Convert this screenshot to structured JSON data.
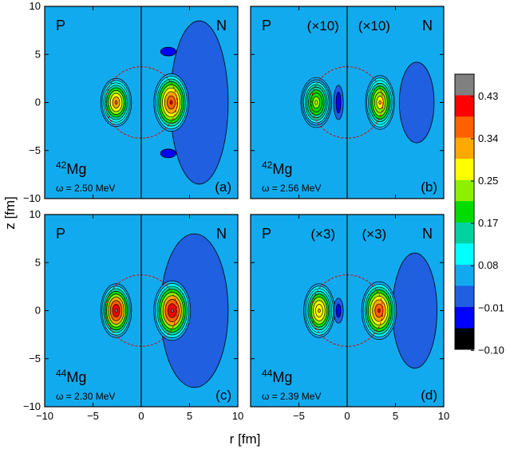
{
  "chart_data": {
    "type": "heatmap",
    "xlabel": "r [fm]",
    "ylabel": "z [fm]",
    "xlim": [
      -10,
      10
    ],
    "ylim": [
      -10,
      10
    ],
    "x_ticks": [
      "−10",
      "−5",
      "0",
      "5",
      "10"
    ],
    "y_ticks": [
      "10",
      "5",
      "0",
      "−5",
      "−10"
    ],
    "colorbar": {
      "levels": [
        -0.1,
        -0.01,
        0.08,
        0.17,
        0.25,
        0.34,
        0.43
      ],
      "labels": [
        "0.43",
        "0.34",
        "0.25",
        "0.17",
        "0.08",
        "−0.01",
        "−0.10"
      ],
      "colors": [
        "#000000",
        "#0000ff",
        "#1f5fe0",
        "#12aaee",
        "#00ffff",
        "#00d2a0",
        "#00dc00",
        "#8cf000",
        "#ffff00",
        "#ffa800",
        "#ff6000",
        "#ff0000",
        "#808080"
      ]
    },
    "panels": [
      {
        "id": "a",
        "left_label": "P",
        "right_label": "N",
        "left_scale": "",
        "right_scale": "",
        "mass_number": "42",
        "element": "Mg",
        "omega": "ω = 2.50 MeV",
        "tag": "(a)",
        "proton": {
          "r": 2.6,
          "a": 1.6,
          "b": 2.5,
          "peak": 0.3
        },
        "neutron": {
          "r": 3.1,
          "a": 1.8,
          "b": 3.0,
          "peak": 0.34
        },
        "halo": {
          "r": 6.0,
          "a": 3.0,
          "b": 8.5,
          "level": -0.05
        }
      },
      {
        "id": "b",
        "left_label": "P",
        "right_label": "N",
        "left_scale": "(×10)",
        "right_scale": "(×10)",
        "mass_number": "42",
        "element": "Mg",
        "omega": "ω = 2.56 MeV",
        "tag": "(b)",
        "proton": {
          "r": 3.2,
          "a": 1.6,
          "b": 2.6,
          "peak": 0.22
        },
        "neutron": {
          "r": 3.4,
          "a": 1.5,
          "b": 2.8,
          "peak": 0.27
        },
        "halo": {
          "r": 7.2,
          "a": 1.8,
          "b": 4.2,
          "level": -0.05
        }
      },
      {
        "id": "c",
        "left_label": "P",
        "right_label": "N",
        "left_scale": "",
        "right_scale": "",
        "mass_number": "44",
        "element": "Mg",
        "omega": "ω = 2.30 MeV",
        "tag": "(c)",
        "proton": {
          "r": 2.6,
          "a": 1.6,
          "b": 2.8,
          "peak": 0.4
        },
        "neutron": {
          "r": 3.2,
          "a": 1.9,
          "b": 3.1,
          "peak": 0.4
        },
        "halo": {
          "r": 5.5,
          "a": 3.5,
          "b": 8.0,
          "level": -0.05
        }
      },
      {
        "id": "d",
        "left_label": "P",
        "right_label": "N",
        "left_scale": "(×3)",
        "right_scale": "(×3)",
        "mass_number": "44",
        "element": "Mg",
        "omega": "ω = 2.39 MeV",
        "tag": "(d)",
        "proton": {
          "r": 2.9,
          "a": 1.6,
          "b": 2.8,
          "peak": 0.28
        },
        "neutron": {
          "r": 3.3,
          "a": 1.8,
          "b": 3.0,
          "peak": 0.38
        },
        "halo": {
          "r": 7.0,
          "a": 2.3,
          "b": 6.0,
          "level": -0.05
        }
      }
    ]
  }
}
